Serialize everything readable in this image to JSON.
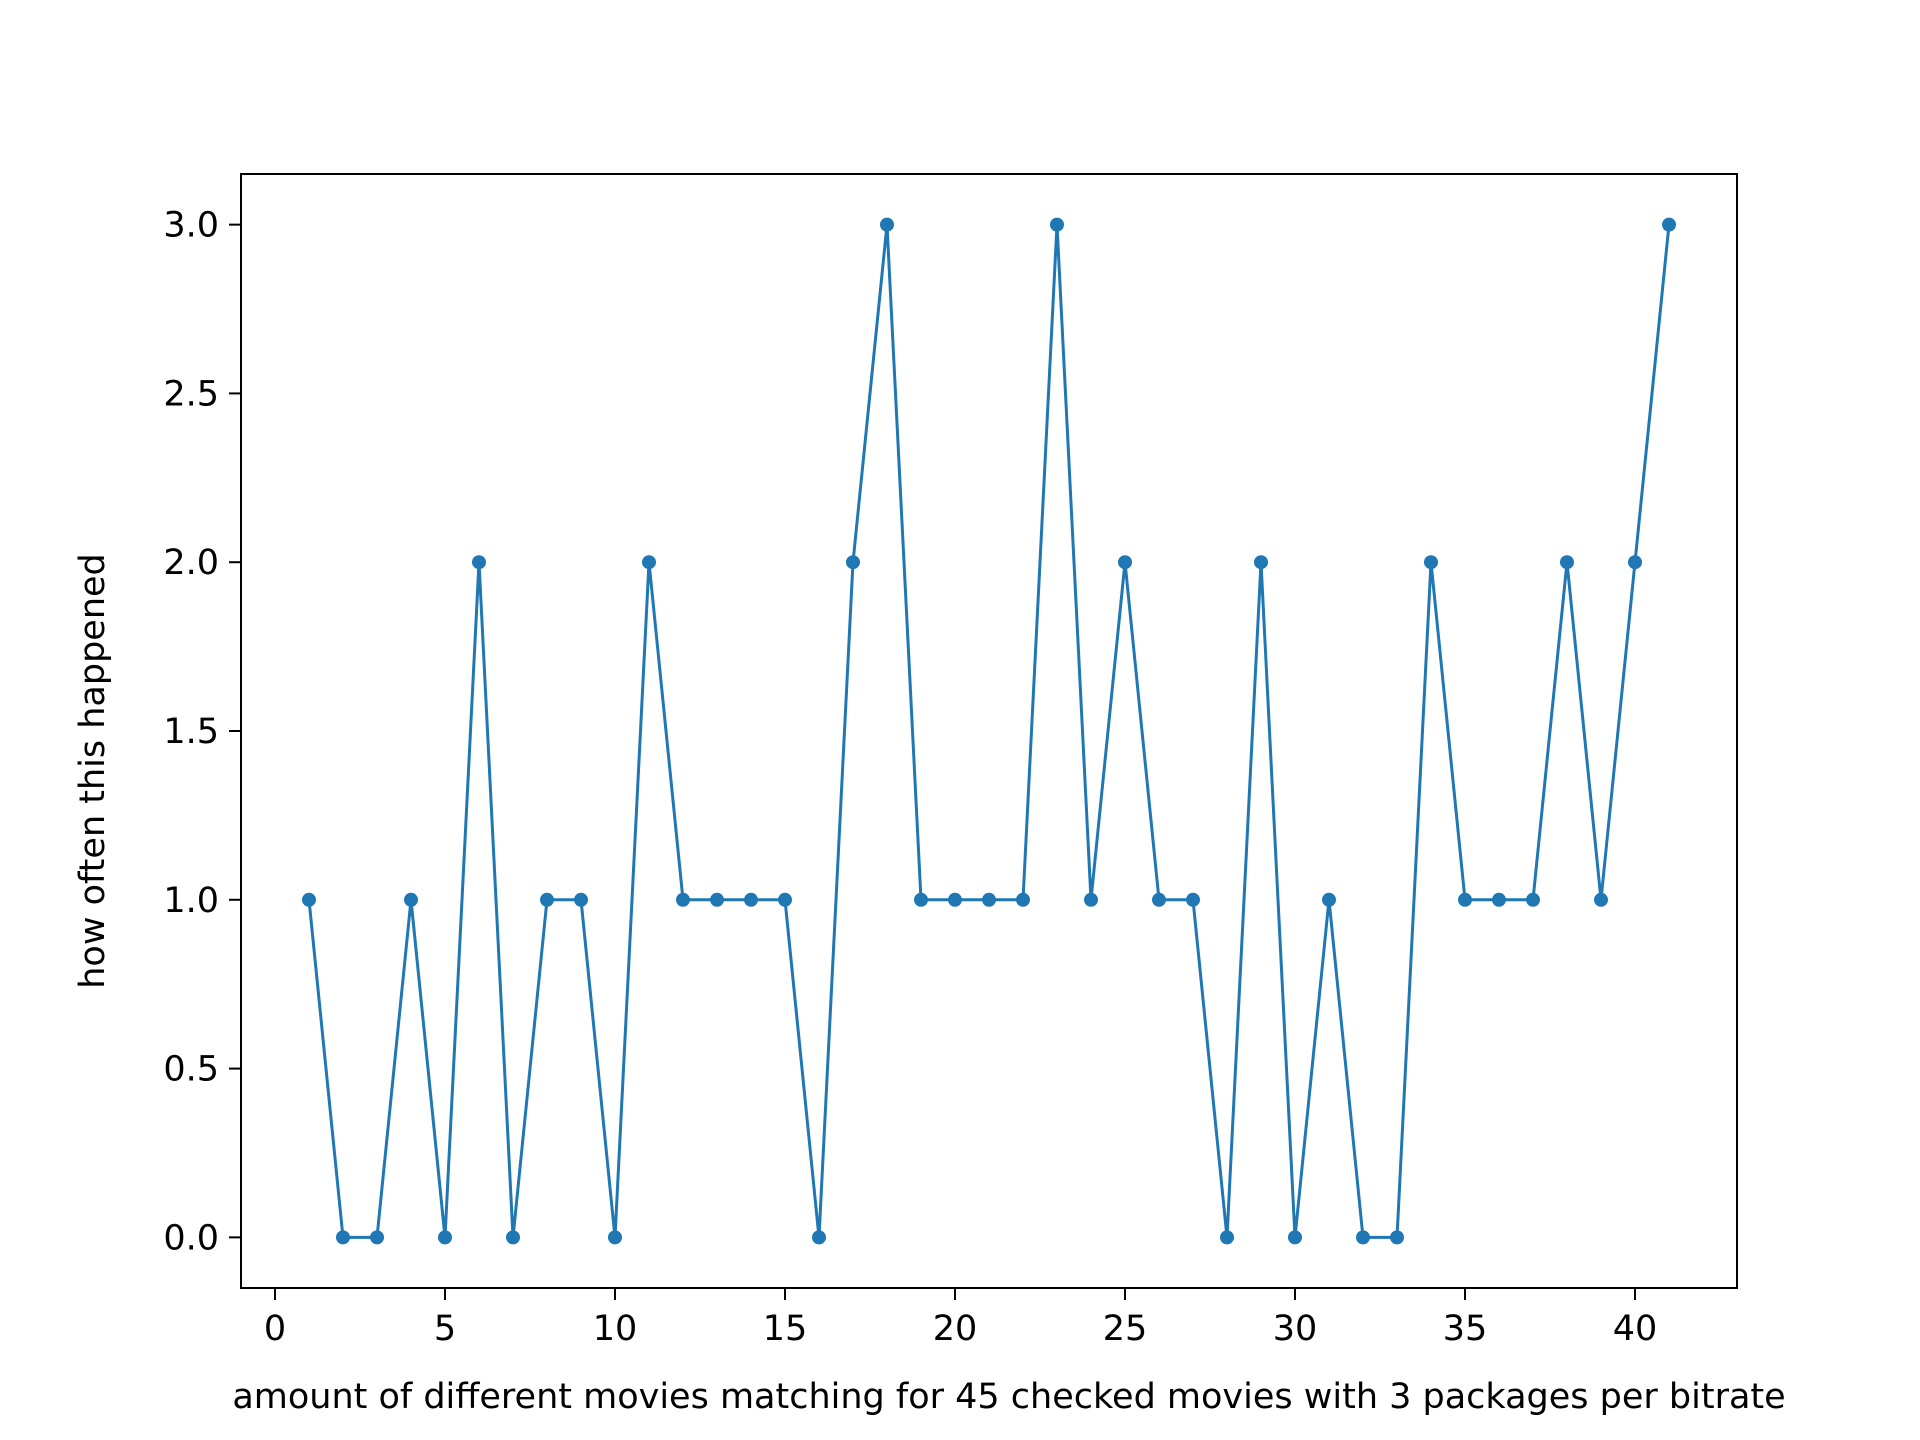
{
  "chart_data": {
    "type": "line",
    "title": "",
    "xlabel": "amount of different movies matching for 45 checked movies with 3 packages per bitrate",
    "ylabel": "how often this happened",
    "xlim": [
      -1,
      43
    ],
    "ylim": [
      -0.15,
      3.15
    ],
    "xticks": [
      0,
      5,
      10,
      15,
      20,
      25,
      30,
      35,
      40
    ],
    "xtick_labels": [
      "0",
      "5",
      "10",
      "15",
      "20",
      "25",
      "30",
      "35",
      "40"
    ],
    "yticks": [
      0,
      0.5,
      1,
      1.5,
      2,
      2.5,
      3
    ],
    "ytick_labels": [
      "0.0",
      "0.5",
      "1.0",
      "1.5",
      "2.0",
      "2.5",
      "3.0"
    ],
    "grid": false,
    "legend": "none",
    "series": [
      {
        "color": "#1f77b4",
        "marker": "circle",
        "x": [
          1,
          2,
          3,
          4,
          5,
          6,
          7,
          8,
          9,
          10,
          11,
          12,
          13,
          14,
          15,
          16,
          17,
          18,
          19,
          20,
          21,
          22,
          23,
          24,
          25,
          26,
          27,
          28,
          29,
          30,
          31,
          32,
          33,
          34,
          35,
          36,
          37,
          38,
          39,
          40,
          41
        ],
        "y": [
          1,
          0,
          0,
          1,
          0,
          2,
          0,
          1,
          1,
          0,
          2,
          1,
          1,
          1,
          1,
          0,
          2,
          3,
          1,
          1,
          1,
          1,
          3,
          1,
          2,
          1,
          1,
          0,
          2,
          0,
          1,
          0,
          0,
          2,
          1,
          1,
          1,
          2,
          1,
          2,
          3
        ]
      }
    ]
  }
}
